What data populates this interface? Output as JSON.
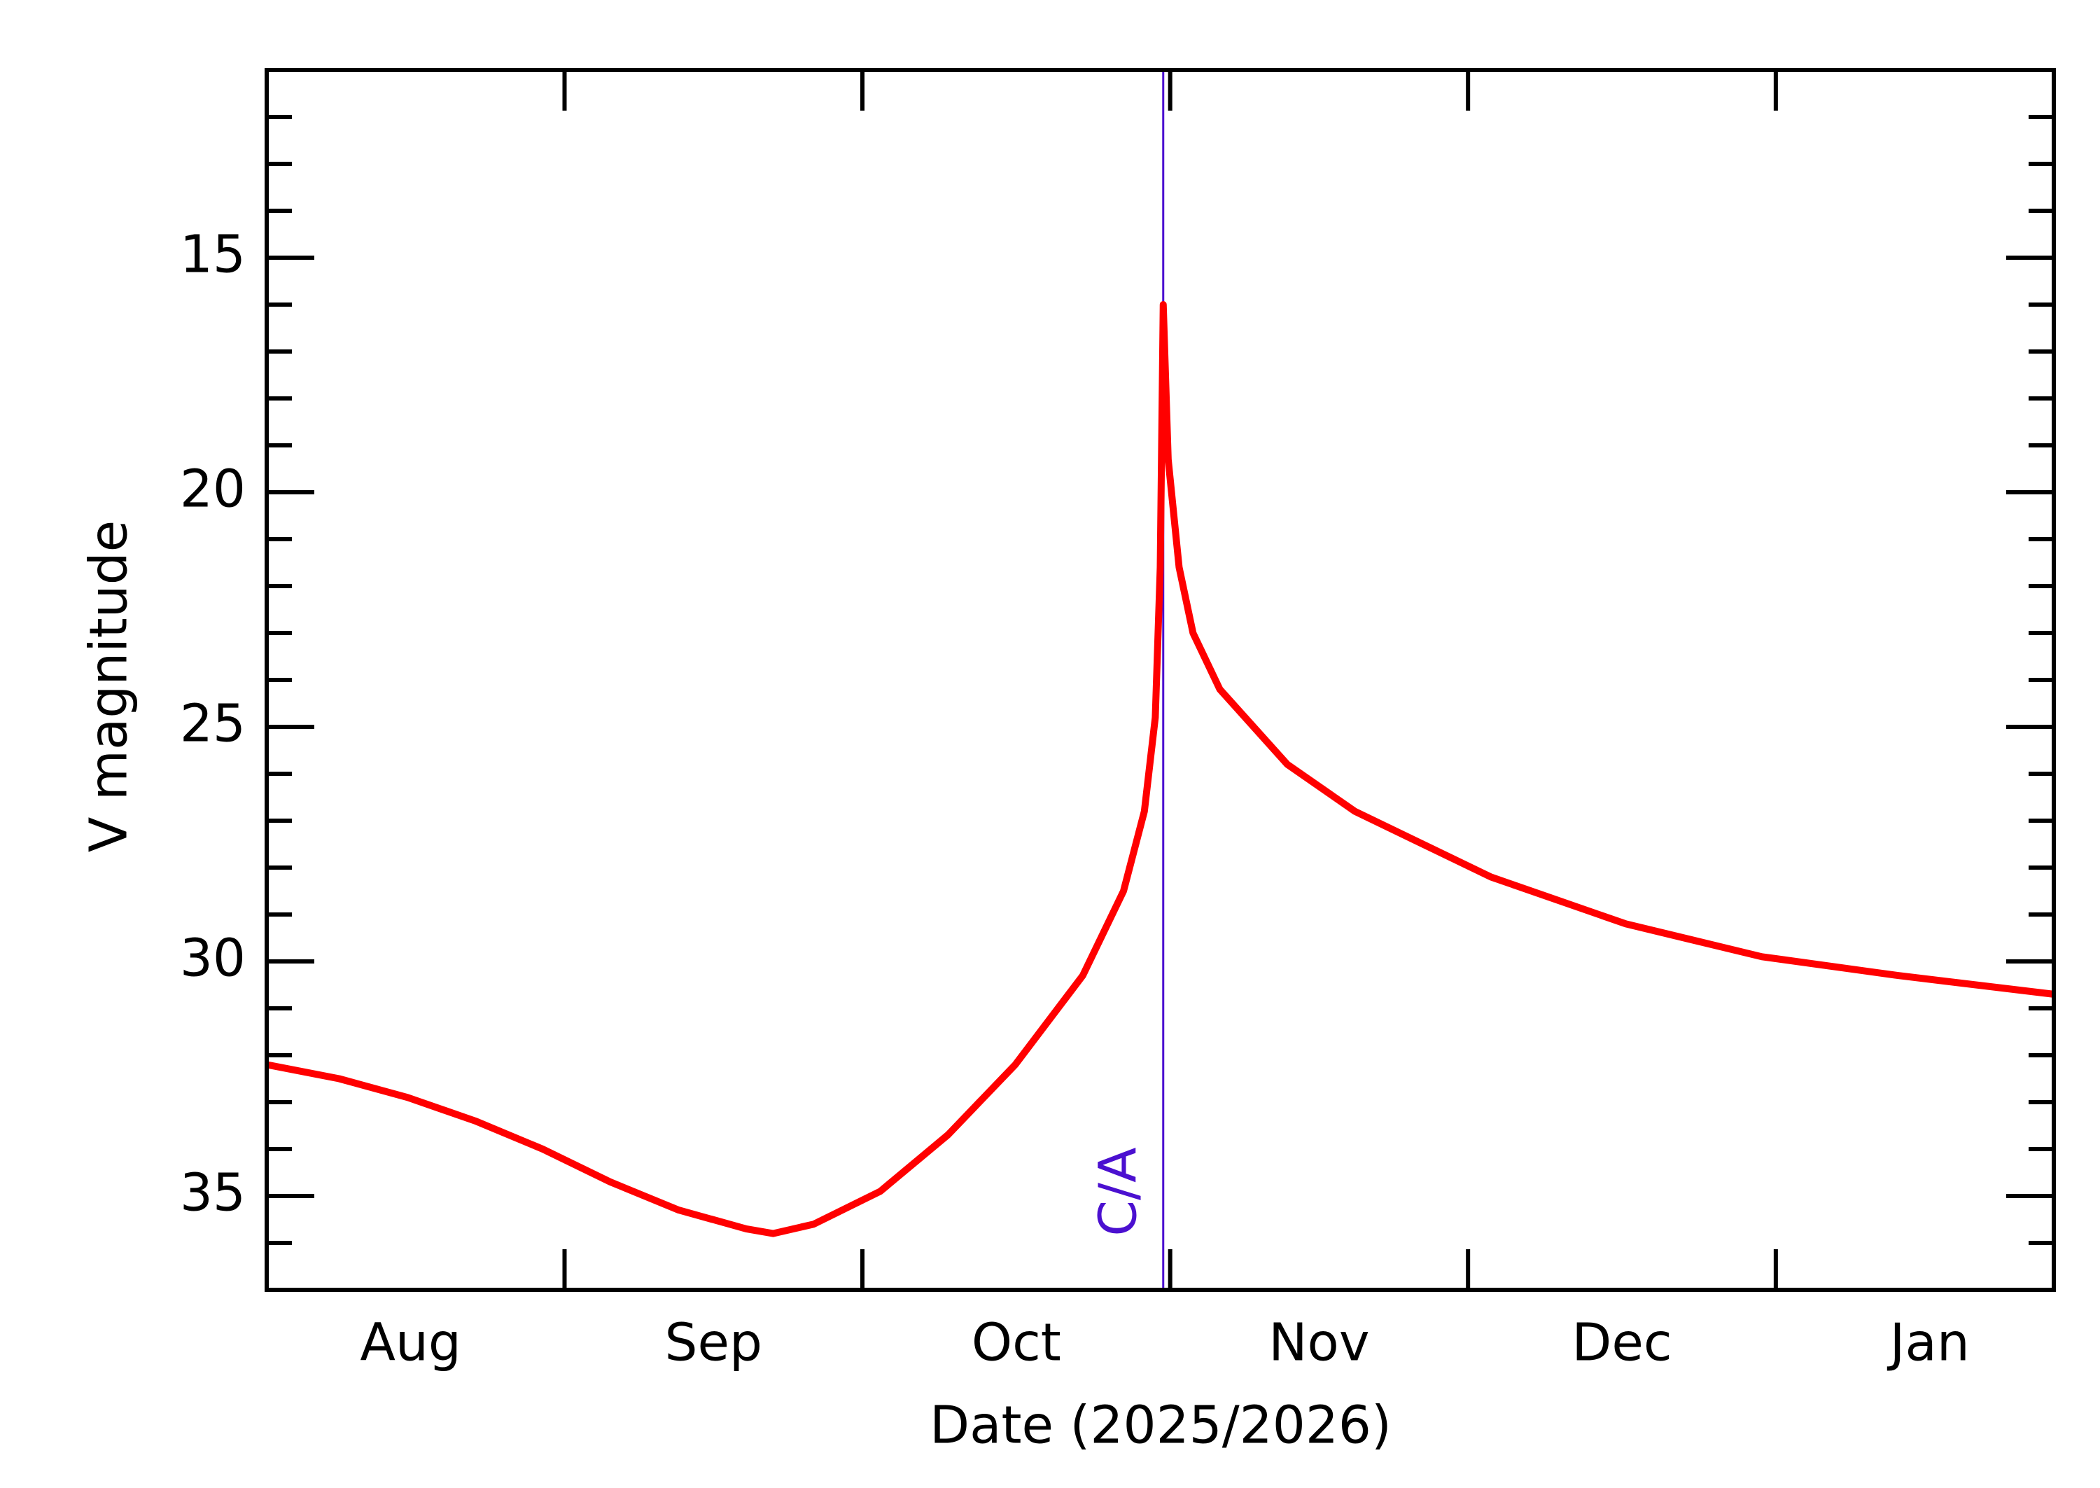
{
  "chart_data": {
    "type": "line",
    "xlabel": "Date (2025/2026)",
    "ylabel": "V magnitude",
    "x": [
      1,
      8.3,
      15.2,
      22,
      28.8,
      35.6,
      42.5,
      49.3,
      52,
      56.1,
      62.8,
      69.6,
      76.4,
      83.2,
      87.3,
      89.4,
      90.5,
      91,
      91.3,
      91.8,
      92.9,
      94.3,
      97,
      103.8,
      110.6,
      124.3,
      137.9,
      151.6,
      165.3,
      181
    ],
    "series": [
      {
        "name": "V magnitude",
        "color": "#ff0000",
        "values": [
          32.2,
          32.5,
          32.9,
          33.4,
          34.0,
          34.7,
          35.3,
          35.7,
          35.8,
          35.6,
          34.9,
          33.7,
          32.2,
          30.3,
          28.5,
          26.8,
          24.8,
          21.6,
          16.0,
          19.3,
          21.6,
          23.0,
          24.2,
          25.8,
          26.8,
          28.2,
          29.2,
          29.9,
          30.3,
          30.7
        ]
      }
    ],
    "xlim": [
      1,
      181
    ],
    "xticks": [
      31,
      61,
      92,
      122,
      153
    ],
    "xlabels": [
      {
        "value": 15.5,
        "label": "Aug"
      },
      {
        "value": 46,
        "label": "Sep"
      },
      {
        "value": 76.5,
        "label": "Oct"
      },
      {
        "value": 107,
        "label": "Nov"
      },
      {
        "value": 137.5,
        "label": "Dec"
      },
      {
        "value": 168.5,
        "label": "Jan"
      }
    ],
    "ylim": [
      37,
      11
    ],
    "yticks": [
      15,
      20,
      25,
      30,
      35
    ],
    "yminorticks": [
      12,
      13,
      14,
      16,
      17,
      18,
      19,
      21,
      22,
      23,
      24,
      26,
      27,
      28,
      29,
      31,
      32,
      33,
      34,
      36
    ],
    "annotations": [
      {
        "text": "C/A",
        "x": 91.3,
        "color": "#4b10d0"
      }
    ]
  }
}
